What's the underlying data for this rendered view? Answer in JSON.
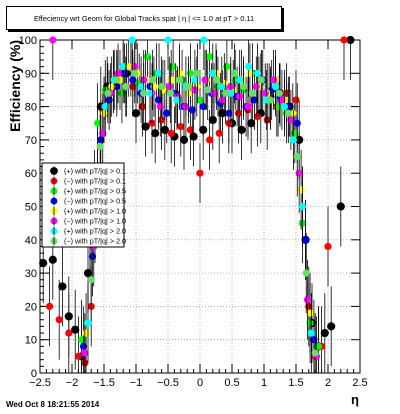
{
  "timestamp": "Wed Oct  8 18:21:55 2014",
  "chart_data": {
    "type": "scatter",
    "title": "Effeciency wrt Geom for Global Tracks spat | η | <= 1.0 at pT > 0.11",
    "xlabel": "η",
    "ylabel": "Efficiency (%)",
    "xlim": [
      -2.5,
      2.5
    ],
    "ylim": [
      0,
      100
    ],
    "x_ticks": [
      "−2.5",
      "−2",
      "−1.5",
      "−1",
      "−0.5",
      "0",
      "0.5",
      "1",
      "1.5",
      "2",
      "2.5"
    ],
    "y_ticks": [
      "0",
      "10",
      "20",
      "30",
      "40",
      "50",
      "60",
      "70",
      "80",
      "90",
      "100"
    ],
    "grid": true,
    "legend_position": "middle-left",
    "series": [
      {
        "name": "(+) with pT/|q| > 0.1",
        "color": "#000000",
        "x": [
          -2.45,
          -2.3,
          -2.15,
          -2.05,
          -1.95,
          -1.85,
          -1.75,
          -1.65,
          -1.55,
          -1.45,
          -1.3,
          -1.15,
          -1.0,
          -0.85,
          -0.7,
          -0.55,
          -0.4,
          -0.25,
          -0.1,
          0.05,
          0.2,
          0.35,
          0.5,
          0.65,
          0.8,
          0.95,
          1.1,
          1.25,
          1.4,
          1.55,
          1.65,
          1.75,
          1.85,
          1.95,
          2.05,
          2.2,
          2.35
        ],
        "y": [
          33,
          34,
          26,
          17,
          13,
          5,
          30,
          55,
          80,
          86,
          88,
          90,
          78,
          74,
          72,
          73,
          71,
          70,
          71,
          73,
          76,
          78,
          75,
          73,
          75,
          78,
          83,
          84,
          80,
          70,
          40,
          15,
          8,
          12,
          14,
          50,
          100
        ]
      },
      {
        "name": "(−) with pT/|q| > 0.1",
        "color": "#ff0000",
        "x": [
          -2.35,
          -2.2,
          -2.05,
          -1.9,
          -1.8,
          -1.7,
          -1.6,
          -1.5,
          -1.35,
          -1.2,
          -1.05,
          -0.9,
          -0.75,
          -0.6,
          -0.45,
          -0.3,
          -0.15,
          0.0,
          0.15,
          0.3,
          0.45,
          0.6,
          0.75,
          0.9,
          1.05,
          1.2,
          1.35,
          1.5,
          1.6,
          1.7,
          1.8,
          1.9,
          2.0,
          2.25
        ],
        "y": [
          20,
          16,
          12,
          5,
          3,
          20,
          62,
          80,
          87,
          90,
          86,
          80,
          75,
          76,
          72,
          74,
          73,
          60,
          70,
          72,
          75,
          78,
          79,
          77,
          76,
          80,
          84,
          82,
          50,
          20,
          5,
          8,
          38,
          100
        ]
      },
      {
        "name": "(+) with pT/|q| > 0.5",
        "color": "#00ff00",
        "x": [
          -1.85,
          -1.72,
          -1.6,
          -1.48,
          -1.35,
          -1.22,
          -1.08,
          -0.95,
          -0.82,
          -0.68,
          -0.55,
          -0.42,
          -0.28,
          -0.15,
          0.0,
          0.15,
          0.28,
          0.42,
          0.55,
          0.68,
          0.82,
          0.95,
          1.08,
          1.22,
          1.35,
          1.48,
          1.6,
          1.72,
          1.85
        ],
        "y": [
          10,
          40,
          75,
          85,
          88,
          84,
          92,
          87,
          95,
          90,
          85,
          92,
          88,
          90,
          82,
          95,
          86,
          92,
          88,
          85,
          90,
          87,
          84,
          80,
          78,
          72,
          45,
          15,
          8
        ]
      },
      {
        "name": "(−) with pT/|q| > 0.5",
        "color": "#0000ff",
        "x": [
          -1.82,
          -1.68,
          -1.55,
          -1.42,
          -1.3,
          -1.18,
          -1.05,
          -0.92,
          -0.78,
          -0.65,
          -0.52,
          -0.38,
          -0.25,
          -0.12,
          0.05,
          0.18,
          0.32,
          0.45,
          0.58,
          0.72,
          0.85,
          0.98,
          1.12,
          1.25,
          1.38,
          1.52,
          1.65,
          1.78
        ],
        "y": [
          8,
          35,
          70,
          82,
          86,
          90,
          88,
          84,
          86,
          82,
          78,
          84,
          80,
          79,
          80,
          84,
          81,
          78,
          83,
          80,
          82,
          88,
          85,
          83,
          80,
          75,
          40,
          10
        ]
      },
      {
        "name": "(+) with pT/|q| > 1.0",
        "color": "#ffff00",
        "x": [
          -1.78,
          -1.64,
          -1.5,
          -1.38,
          -1.25,
          -1.12,
          -0.98,
          -0.85,
          -0.72,
          -0.58,
          -0.45,
          -0.32,
          -0.18,
          -0.05,
          0.1,
          0.25,
          0.38,
          0.52,
          0.65,
          0.78,
          0.92,
          1.05,
          1.18,
          1.32,
          1.45,
          1.58,
          1.72
        ],
        "y": [
          12,
          45,
          78,
          86,
          88,
          92,
          90,
          88,
          86,
          85,
          88,
          90,
          84,
          86,
          88,
          90,
          87,
          85,
          88,
          90,
          86,
          84,
          88,
          82,
          78,
          55,
          18
        ]
      },
      {
        "name": "(−) with pT/|q| > 1.0",
        "color": "#ff00ff",
        "x": [
          -2.3,
          -1.8,
          -1.66,
          -1.52,
          -1.4,
          -1.28,
          -1.15,
          -1.02,
          -0.88,
          -0.75,
          -0.62,
          -0.48,
          -0.35,
          -0.22,
          -0.08,
          0.08,
          0.22,
          0.35,
          0.48,
          0.62,
          0.75,
          0.88,
          1.02,
          1.15,
          1.28,
          1.42,
          1.55,
          1.68,
          1.82
        ],
        "y": [
          100,
          6,
          38,
          72,
          84,
          90,
          86,
          92,
          88,
          84,
          80,
          86,
          83,
          80,
          85,
          88,
          84,
          82,
          86,
          83,
          80,
          86,
          84,
          88,
          82,
          76,
          60,
          22,
          5
        ]
      },
      {
        "name": "(+) with pT/|q| > 2.0",
        "color": "#00ffff",
        "x": [
          -1.75,
          -1.62,
          -1.48,
          -1.34,
          -1.2,
          -1.06,
          -0.92,
          -0.78,
          -0.64,
          -0.5,
          -0.36,
          -0.22,
          -0.08,
          0.06,
          0.2,
          0.34,
          0.48,
          0.62,
          0.76,
          0.9,
          1.04,
          1.18,
          1.32,
          1.46,
          1.6,
          1.74
        ],
        "y": [
          15,
          50,
          80,
          88,
          92,
          100,
          86,
          84,
          90,
          100,
          82,
          86,
          88,
          100,
          90,
          86,
          84,
          88,
          92,
          90,
          82,
          86,
          80,
          70,
          50,
          12
        ]
      },
      {
        "name": "(−) with pT/|q| > 2.0",
        "color": "#66dd66",
        "x": [
          -1.7,
          -1.56,
          -1.44,
          -1.3,
          -1.16,
          -1.02,
          -0.88,
          -0.74,
          -0.6,
          -0.46,
          -0.32,
          -0.18,
          -0.04,
          0.12,
          0.26,
          0.4,
          0.54,
          0.68,
          0.82,
          0.96,
          1.1,
          1.24,
          1.38,
          1.52,
          1.66,
          1.8
        ],
        "y": [
          28,
          68,
          84,
          88,
          86,
          90,
          84,
          88,
          86,
          84,
          88,
          86,
          90,
          85,
          88,
          84,
          90,
          86,
          84,
          88,
          82,
          84,
          78,
          65,
          30,
          6
        ]
      }
    ]
  }
}
